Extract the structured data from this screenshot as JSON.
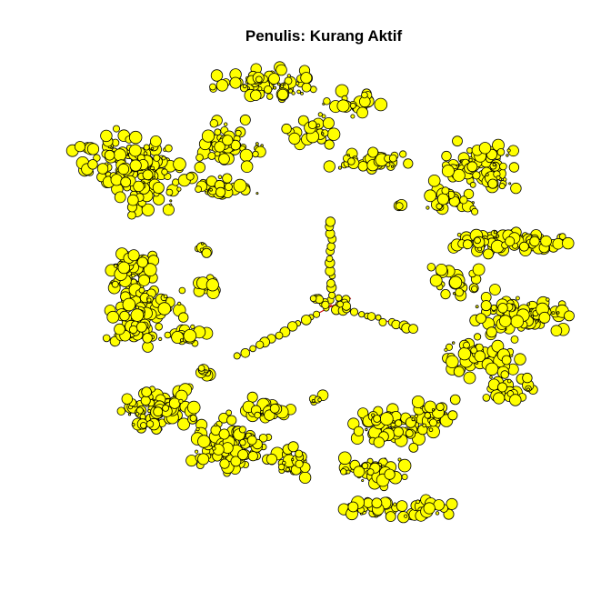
{
  "title": "Penulis: Kurang Aktif",
  "colors": {
    "node_fill": "#ffff00",
    "node_stroke": "#000000",
    "edge": "#cc0000",
    "background": "#ffffff"
  },
  "graph": {
    "layout": "radial network with three-spoke hub",
    "node_shape": "circle"
  }
}
